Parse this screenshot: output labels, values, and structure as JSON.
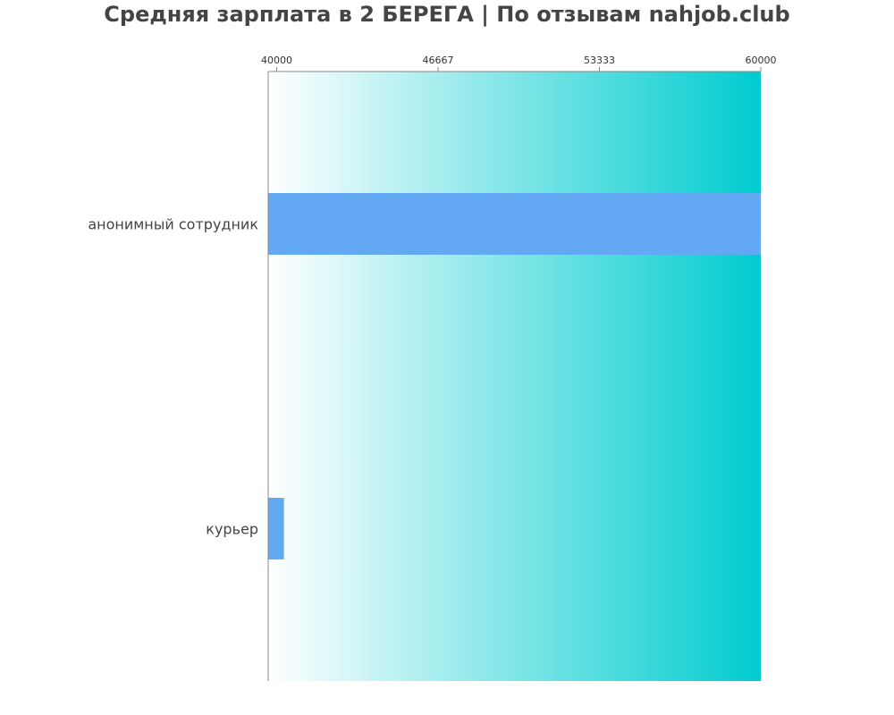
{
  "chart_data": {
    "type": "bar",
    "orientation": "horizontal",
    "title": "Средняя зарплата в 2 БЕРЕГА | По отзывам nahjob.club",
    "categories": [
      "анонимный сотрудник",
      "курьер"
    ],
    "values": [
      60000,
      40300
    ],
    "xlim": [
      39650,
      60000
    ],
    "x_ticks": [
      40000,
      46667,
      53333,
      60000
    ],
    "x_tick_labels": [
      "40000",
      "46667",
      "53333",
      "60000"
    ],
    "axis_position": "top",
    "grid": false,
    "colors": {
      "bar": "#63a8f2",
      "background_gradient_start": "#ffffff",
      "background_gradient_end": "#00cccf",
      "axis": "#888888",
      "title": "#444444",
      "label": "#444444"
    }
  }
}
